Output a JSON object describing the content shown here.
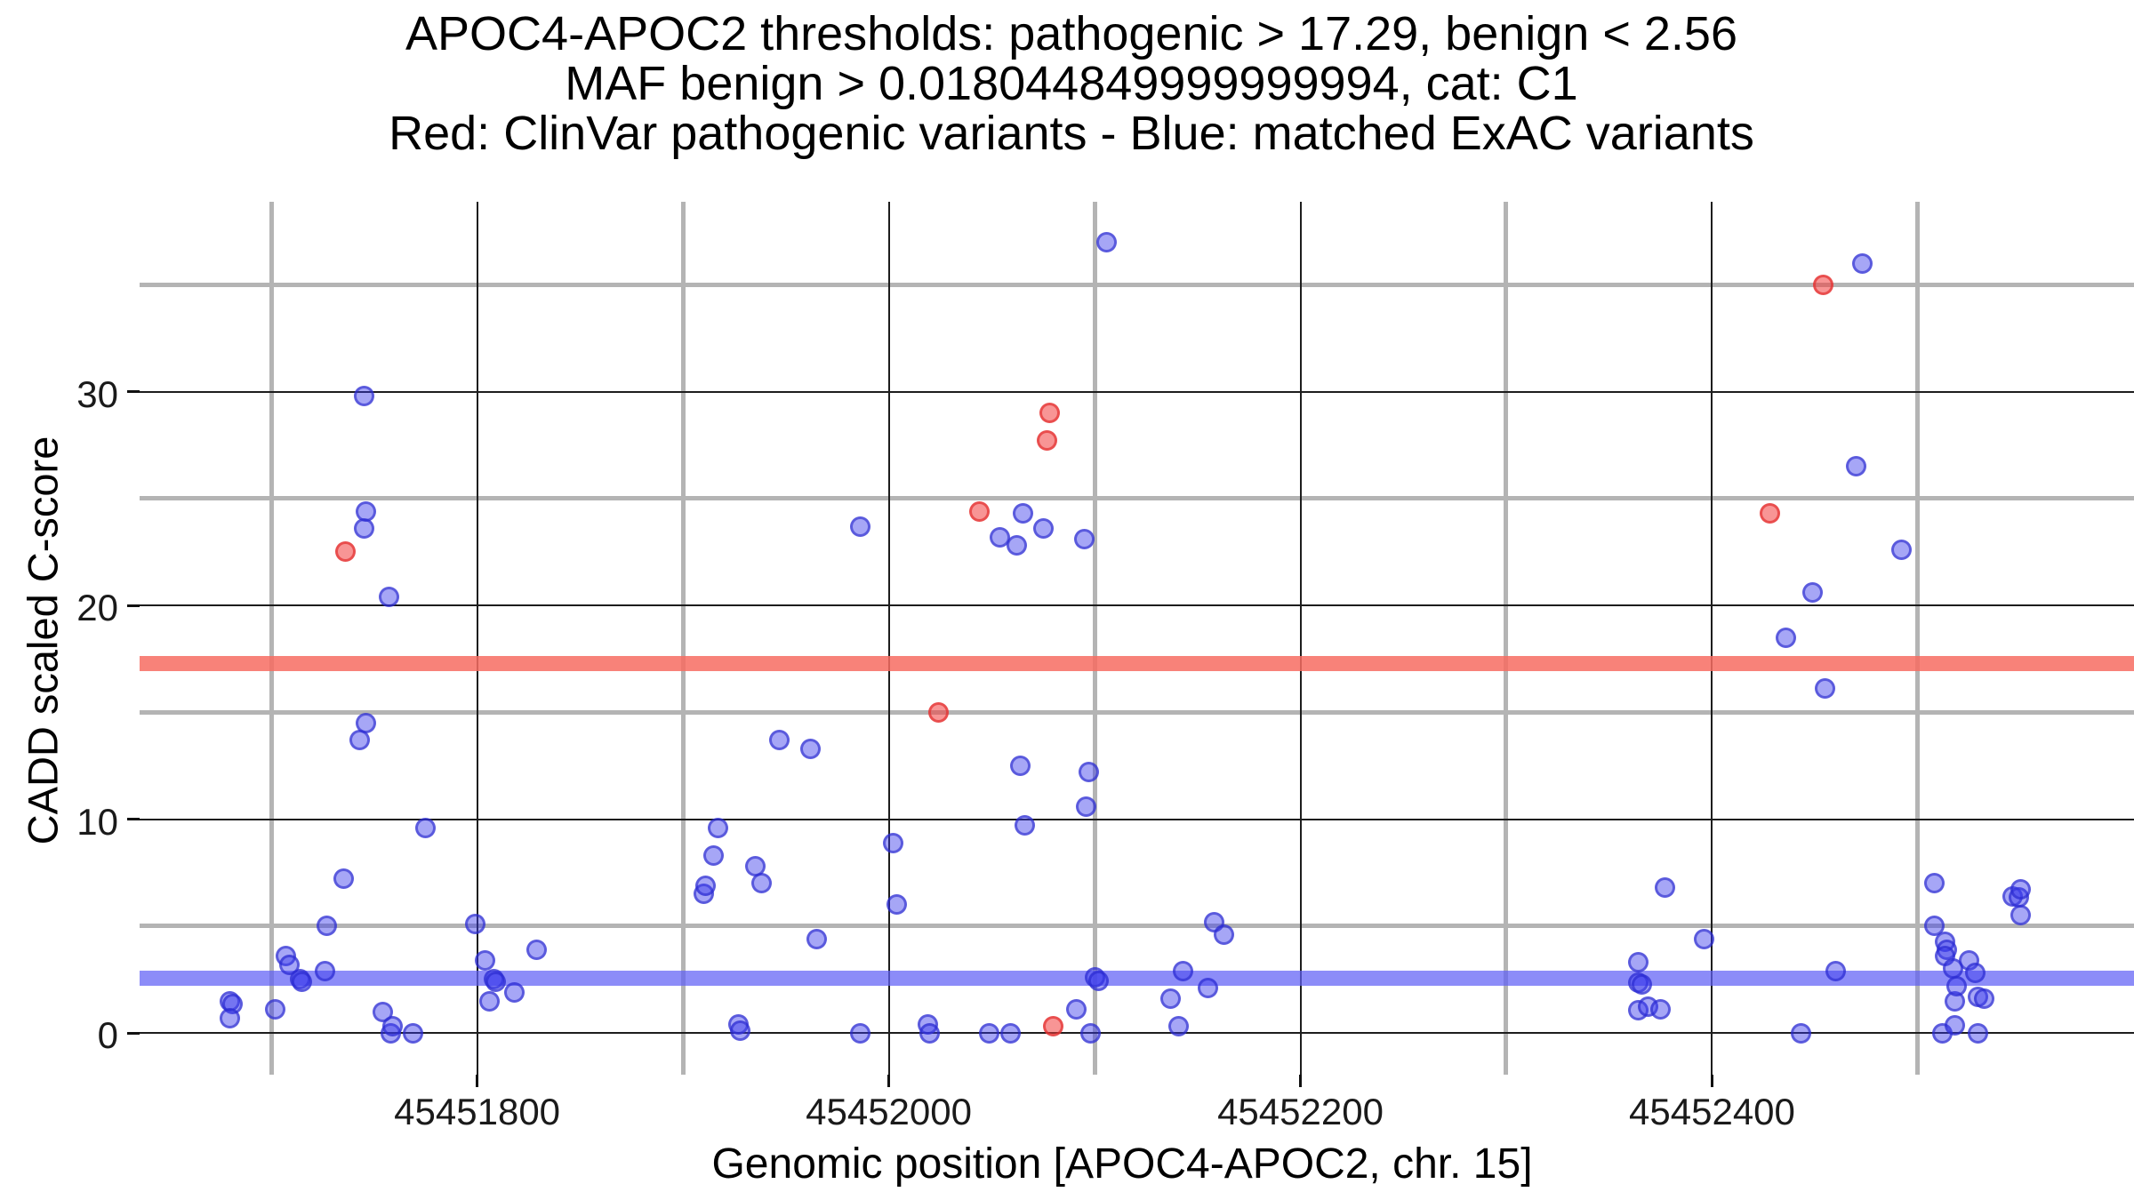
{
  "title": {
    "line1": "APOC4-APOC2 thresholds: pathogenic > 17.29, benign < 2.56",
    "line2": "MAF benign > 0.018044849999999994, cat: C1",
    "line3": "Red: ClinVar pathogenic variants - Blue: matched ExAC variants"
  },
  "axes": {
    "x_label": "Genomic position [APOC4-APOC2, chr. 15]",
    "y_label": "CADD scaled C-score"
  },
  "colors": {
    "pathogenic_line": "rgba(247,108,98,0.85)",
    "benign_line": "rgba(95,95,245,0.72)",
    "red_points": "#e23e3e",
    "blue_points": "#3a3aeb",
    "minor_grid": "#b4b4b4",
    "major_grid": "#1d1d1d"
  },
  "chart_data": {
    "type": "scatter",
    "title": "APOC4-APOC2 thresholds: pathogenic > 17.29, benign < 2.56 | MAF benign > 0.018044849999999994, cat: C1 | Red: ClinVar pathogenic variants - Blue: matched ExAC variants",
    "xlabel": "Genomic position [APOC4-APOC2, chr. 15]",
    "ylabel": "CADD scaled C-score",
    "xlim": [
      45451636,
      45452605
    ],
    "ylim": [
      -1.95,
      38.88
    ],
    "grid": "on",
    "legend_position": "none",
    "x_ticks": [
      {
        "pos": 45451800,
        "label": "45451800"
      },
      {
        "pos": 45452000,
        "label": "45452000"
      },
      {
        "pos": 45452200,
        "label": "45452200"
      },
      {
        "pos": 45452400,
        "label": "45452400"
      }
    ],
    "y_ticks": [
      {
        "v": 0,
        "label": "0"
      },
      {
        "v": 10,
        "label": "10"
      },
      {
        "v": 20,
        "label": "20"
      },
      {
        "v": 30,
        "label": "30"
      }
    ],
    "x_minor_gridlines": [
      45451700,
      45451900,
      45452100,
      45452300,
      45452500
    ],
    "x_major_gridlines": [
      45451800,
      45452000,
      45452200,
      45452400
    ],
    "y_minor_gridlines": [
      5,
      15,
      25,
      35
    ],
    "y_major_gridlines": [
      0,
      10,
      20,
      30
    ],
    "thresholds": {
      "pathogenic": 17.29,
      "benign": 2.56,
      "maf_benign": 0.018044849999999994,
      "cat": "C1"
    },
    "hlines": [
      {
        "y": 17.29,
        "name": "pathogenic-threshold",
        "color_key": "pathogenic_line"
      },
      {
        "y": 2.56,
        "name": "benign-threshold",
        "color_key": "benign_line"
      }
    ],
    "series": [
      {
        "name": "matched ExAC variants",
        "color": "blue",
        "points": [
          [
            45451680,
            1.5
          ],
          [
            45451681,
            1.35
          ],
          [
            45451680,
            0.7
          ],
          [
            45451702,
            1.1
          ],
          [
            45451707,
            3.6
          ],
          [
            45451709,
            3.2
          ],
          [
            45451714,
            2.5
          ],
          [
            45451715,
            2.4
          ],
          [
            45451726,
            2.9
          ],
          [
            45451727,
            5.0
          ],
          [
            45451735,
            7.2
          ],
          [
            45451743,
            13.7
          ],
          [
            45451745,
            29.8
          ],
          [
            45451745,
            23.6
          ],
          [
            45451746,
            24.4
          ],
          [
            45451746,
            14.5
          ],
          [
            45451754,
            1.0
          ],
          [
            45451757,
            20.4
          ],
          [
            45451758,
            0.0
          ],
          [
            45451759,
            0.3
          ],
          [
            45451769,
            0.0
          ],
          [
            45451775,
            9.6
          ],
          [
            45451799,
            5.1
          ],
          [
            45451804,
            3.4
          ],
          [
            45451806,
            1.5
          ],
          [
            45451808,
            2.5
          ],
          [
            45451809,
            2.4
          ],
          [
            45451818,
            1.9
          ],
          [
            45451829,
            3.9
          ],
          [
            45451910,
            6.5
          ],
          [
            45451911,
            6.9
          ],
          [
            45451915,
            8.3
          ],
          [
            45451917,
            9.6
          ],
          [
            45451927,
            0.4
          ],
          [
            45451928,
            0.1
          ],
          [
            45451935,
            7.8
          ],
          [
            45451938,
            7.0
          ],
          [
            45451947,
            13.7
          ],
          [
            45451962,
            13.3
          ],
          [
            45451965,
            4.4
          ],
          [
            45451986,
            23.7
          ],
          [
            45451986,
            0.0
          ],
          [
            45452002,
            8.9
          ],
          [
            45452004,
            6.0
          ],
          [
            45452019,
            0.4
          ],
          [
            45452020,
            0.0
          ],
          [
            45452049,
            0.0
          ],
          [
            45452054,
            23.2
          ],
          [
            45452059,
            0.0
          ],
          [
            45452062,
            22.8
          ],
          [
            45452064,
            12.5
          ],
          [
            45452065,
            24.3
          ],
          [
            45452066,
            9.7
          ],
          [
            45452075,
            23.6
          ],
          [
            45452091,
            1.1
          ],
          [
            45452095,
            23.1
          ],
          [
            45452096,
            10.6
          ],
          [
            45452097,
            12.2
          ],
          [
            45452098,
            0.0
          ],
          [
            45452100,
            2.6
          ],
          [
            45452102,
            2.45
          ],
          [
            45452106,
            37.0
          ],
          [
            45452137,
            1.6
          ],
          [
            45452141,
            0.3
          ],
          [
            45452143,
            2.9
          ],
          [
            45452155,
            2.1
          ],
          [
            45452158,
            5.2
          ],
          [
            45452163,
            4.6
          ],
          [
            45452364,
            3.3
          ],
          [
            45452364,
            2.35
          ],
          [
            45452366,
            2.25
          ],
          [
            45452364,
            1.05
          ],
          [
            45452369,
            1.25
          ],
          [
            45452375,
            1.1
          ],
          [
            45452377,
            6.8
          ],
          [
            45452396,
            4.4
          ],
          [
            45452436,
            18.5
          ],
          [
            45452443,
            0.0
          ],
          [
            45452449,
            20.6
          ],
          [
            45452455,
            16.1
          ],
          [
            45452460,
            2.9
          ],
          [
            45452470,
            26.5
          ],
          [
            45452473,
            36.0
          ],
          [
            45452492,
            22.6
          ],
          [
            45452508,
            7.0
          ],
          [
            45452508,
            5.0
          ],
          [
            45452512,
            0.0
          ],
          [
            45452513,
            4.25
          ],
          [
            45452514,
            3.9
          ],
          [
            45452513,
            3.6
          ],
          [
            45452517,
            3.0
          ],
          [
            45452518,
            1.5
          ],
          [
            45452518,
            0.35
          ],
          [
            45452519,
            2.2
          ],
          [
            45452525,
            3.4
          ],
          [
            45452528,
            2.8
          ],
          [
            45452529,
            1.7
          ],
          [
            45452532,
            1.6
          ],
          [
            45452529,
            0.0
          ],
          [
            45452546,
            6.4
          ],
          [
            45452549,
            6.35
          ],
          [
            45452550,
            6.7
          ],
          [
            45452550,
            5.5
          ]
        ]
      },
      {
        "name": "ClinVar pathogenic variants",
        "color": "red",
        "points": [
          [
            45451736,
            22.5
          ],
          [
            45452024,
            15.0
          ],
          [
            45452044,
            24.4
          ],
          [
            45452077,
            27.7
          ],
          [
            45452078,
            29.0
          ],
          [
            45452080,
            0.3
          ],
          [
            45452428,
            24.3
          ],
          [
            45452454,
            35.0
          ]
        ]
      }
    ]
  }
}
